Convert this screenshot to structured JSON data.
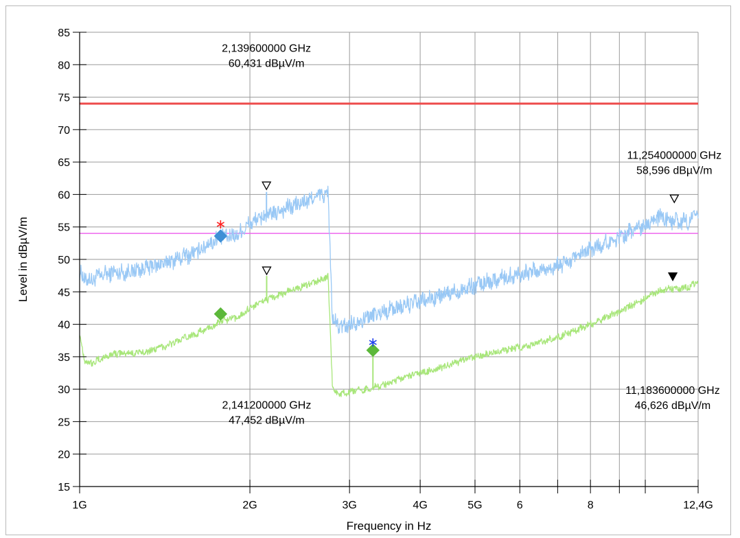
{
  "chart_data": {
    "type": "line",
    "x_scale": "log",
    "xlabel": "Frequency in Hz",
    "ylabel": "Level in dBµV/m",
    "xlim": [
      1,
      12.4
    ],
    "ylim": [
      15,
      85
    ],
    "grid": true,
    "x_ticks": [
      {
        "value": 1,
        "label": "1G"
      },
      {
        "value": 2,
        "label": "2G"
      },
      {
        "value": 3,
        "label": "3G"
      },
      {
        "value": 4,
        "label": "4G"
      },
      {
        "value": 5,
        "label": "5G"
      },
      {
        "value": 6,
        "label": "6"
      },
      {
        "value": 8,
        "label": "8"
      },
      {
        "value": 12.4,
        "label": "12,4G"
      }
    ],
    "x_minor_gridlines": [
      7,
      9,
      10
    ],
    "y_ticks": [
      15,
      20,
      25,
      30,
      35,
      40,
      45,
      50,
      55,
      60,
      65,
      70,
      75,
      80,
      85
    ],
    "limit_lines": [
      {
        "y": 74,
        "color": "#ee4b4b"
      },
      {
        "y": 54,
        "color": "#ee66ee"
      }
    ],
    "series": [
      {
        "color": "#99c8f5",
        "band_width": 1.2,
        "x": [
          1.0,
          1.02,
          1.05,
          1.09,
          1.15,
          1.2,
          1.3,
          1.4,
          1.5,
          1.6,
          1.7,
          1.78,
          1.9,
          2.0,
          2.1,
          2.2,
          2.3,
          2.4,
          2.5,
          2.6,
          2.7,
          2.75,
          2.8,
          2.85,
          2.9,
          3.0,
          3.2,
          3.4,
          3.6,
          3.8,
          4.0,
          4.3,
          4.6,
          5.0,
          5.5,
          6.0,
          6.5,
          7.0,
          7.5,
          8.0,
          8.5,
          9.0,
          9.5,
          10.0,
          10.5,
          11.0,
          11.5,
          12.0,
          12.4
        ],
        "y": [
          48.0,
          47.0,
          46.8,
          47.5,
          48.0,
          48.0,
          48.6,
          49.3,
          50.2,
          51.0,
          52.6,
          53.4,
          53.8,
          55.5,
          56.5,
          57.0,
          57.8,
          58.3,
          58.8,
          59.5,
          60.0,
          60.0,
          40.5,
          40.0,
          39.5,
          40.0,
          41.0,
          41.8,
          42.5,
          43.0,
          43.5,
          44.2,
          45.0,
          46.0,
          47.0,
          47.8,
          48.3,
          49.0,
          50.0,
          51.5,
          52.5,
          53.5,
          54.5,
          55.5,
          56.5,
          56.0,
          55.8,
          56.0,
          57.0
        ]
      },
      {
        "color": "#a8e67a",
        "band_width": 0.5,
        "x": [
          1.0,
          1.02,
          1.05,
          1.1,
          1.15,
          1.2,
          1.3,
          1.4,
          1.5,
          1.6,
          1.7,
          1.78,
          1.9,
          2.0,
          2.1,
          2.2,
          2.3,
          2.4,
          2.5,
          2.6,
          2.7,
          2.75,
          2.8,
          2.85,
          2.9,
          3.0,
          3.2,
          3.4,
          3.6,
          3.8,
          4.0,
          4.3,
          4.6,
          5.0,
          5.5,
          6.0,
          6.5,
          7.0,
          7.5,
          8.0,
          8.5,
          9.0,
          9.5,
          10.0,
          10.5,
          11.0,
          11.5,
          12.0,
          12.4
        ],
        "y": [
          38.5,
          34.5,
          34.0,
          34.8,
          35.5,
          35.5,
          35.7,
          36.5,
          37.5,
          38.5,
          39.5,
          40.5,
          41.0,
          42.5,
          43.5,
          44.2,
          44.8,
          45.4,
          46.0,
          46.5,
          47.0,
          47.3,
          30.0,
          29.5,
          29.2,
          29.5,
          30.0,
          30.5,
          31.2,
          32.0,
          32.5,
          33.2,
          34.0,
          35.0,
          35.8,
          36.5,
          37.2,
          38.0,
          39.0,
          40.0,
          41.0,
          42.0,
          43.0,
          44.0,
          45.0,
          45.5,
          45.5,
          45.8,
          46.5
        ]
      }
    ],
    "spikes": [
      {
        "x": 2.1396,
        "from": 57.0,
        "to": 60.4,
        "color": "#99c8f5"
      },
      {
        "x": 2.1412,
        "from": 43.7,
        "to": 47.45,
        "color": "#a8e67a"
      },
      {
        "x": 3.3,
        "from": 30.5,
        "to": 36.0,
        "color": "#a8e67a"
      }
    ],
    "markers": [
      {
        "x": 2.1396,
        "y": 61.4,
        "shape": "triangle-open",
        "color": "#000000"
      },
      {
        "x": 2.1412,
        "y": 48.3,
        "shape": "triangle-open",
        "color": "#000000"
      },
      {
        "x": 11.254,
        "y": 59.4,
        "shape": "triangle-open",
        "color": "#000000"
      },
      {
        "x": 11.1836,
        "y": 47.4,
        "shape": "triangle-filled",
        "color": "#000000"
      },
      {
        "x": 1.775,
        "y": 53.6,
        "shape": "diamond",
        "color": "#3d8fd6"
      },
      {
        "x": 1.775,
        "y": 41.6,
        "shape": "diamond",
        "color": "#5cb83a"
      },
      {
        "x": 3.3,
        "y": 36.0,
        "shape": "diamond",
        "color": "#5cb83a"
      },
      {
        "x": 1.775,
        "y": 55.4,
        "shape": "asterisk",
        "color": "#ff2020"
      },
      {
        "x": 3.3,
        "y": 37.2,
        "shape": "asterisk",
        "color": "#2040ee"
      }
    ],
    "annotations": [
      {
        "lines": [
          "2,139600000 GHz",
          "60,431 dBµV/m"
        ],
        "x": 2.139,
        "y": 82.0
      },
      {
        "lines": [
          "11,254000000 GHz",
          "58,596 dBµV/m"
        ],
        "x": 11.254,
        "y": 65.5
      },
      {
        "lines": [
          "2,141200000 GHz",
          "47,452 dBµV/m"
        ],
        "x": 2.141,
        "y": 27.0
      },
      {
        "lines": [
          "11,183600000 GHz",
          "46,626 dBµV/m"
        ],
        "x": 11.18,
        "y": 29.3
      }
    ]
  }
}
